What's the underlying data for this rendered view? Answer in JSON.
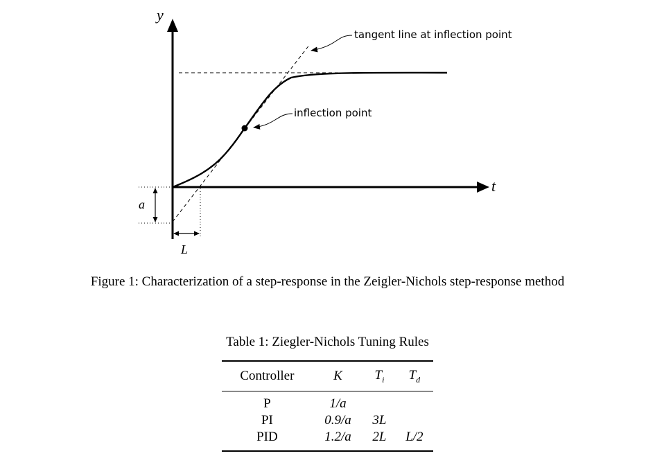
{
  "figure": {
    "axis_y_label": "y",
    "axis_t_label": "t",
    "tangent_label": "tangent line at inflection point",
    "inflection_label": "inflection point",
    "a_label": "a",
    "L_label": "L",
    "caption": "Figure 1: Characterization of a step-response in the Zeigler-Nichols step-response method"
  },
  "table": {
    "caption": "Table 1: Ziegler-Nichols Tuning Rules",
    "headers": {
      "controller": "Controller",
      "k": "K",
      "ti": "T",
      "ti_sub": "i",
      "td": "T",
      "td_sub": "d"
    },
    "rows": [
      {
        "controller": "P",
        "k": "1/a",
        "ti": "",
        "td": ""
      },
      {
        "controller": "PI",
        "k": "0.9/a",
        "ti": "3L",
        "td": ""
      },
      {
        "controller": "PID",
        "k": "1.2/a",
        "ti": "2L",
        "td": "L/2"
      }
    ]
  }
}
